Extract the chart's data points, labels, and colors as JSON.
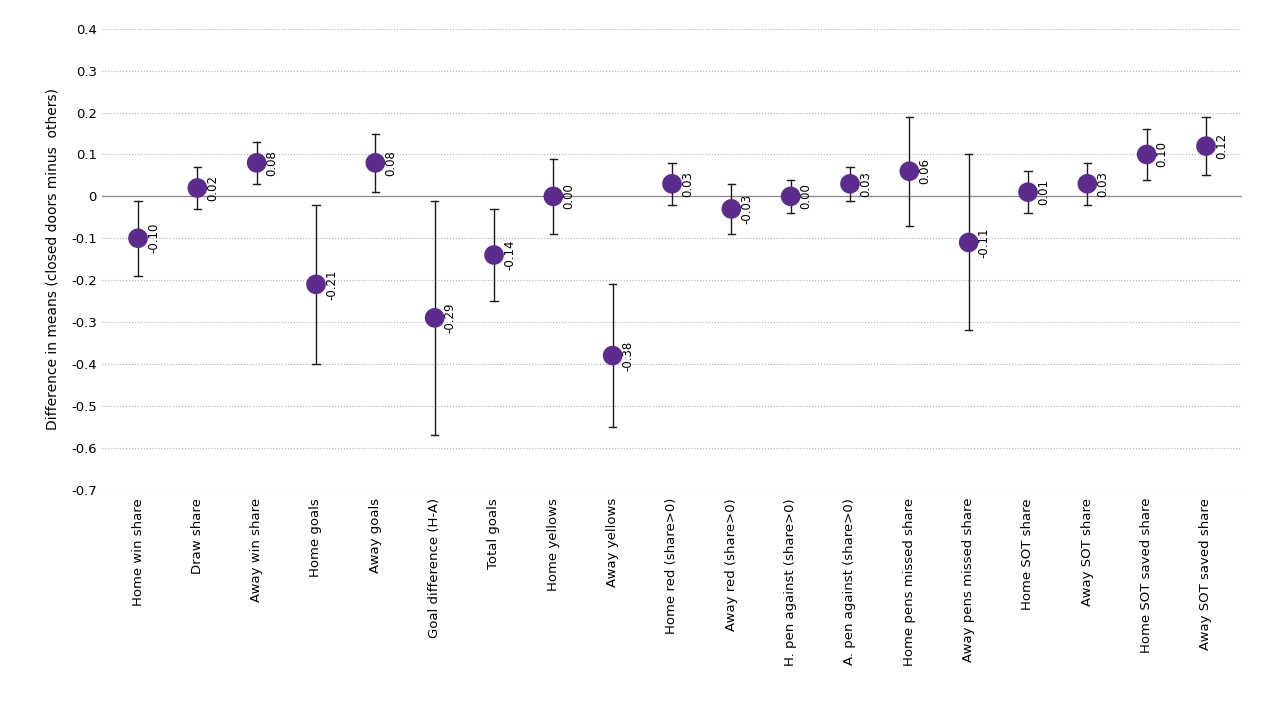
{
  "categories": [
    "Home win share",
    "Draw share",
    "Away win share",
    "Home goals",
    "Away goals",
    "Goal difference (H-A)",
    "Total goals",
    "Home yellows",
    "Away yellows",
    "Home red (share>0)",
    "Away red (share>0)",
    "H. pen against (share>0)",
    "A. pen against (share>0)",
    "Home pens missed share",
    "Away pens missed share",
    "Home SOT share",
    "Away SOT share",
    "Home SOT saved share",
    "Away SOT saved share"
  ],
  "means": [
    -0.1,
    0.02,
    0.08,
    -0.21,
    0.08,
    -0.29,
    -0.14,
    0.0,
    -0.38,
    0.03,
    -0.03,
    0.0,
    0.03,
    0.06,
    -0.11,
    0.01,
    0.03,
    0.1,
    0.12
  ],
  "ci_lower": [
    -0.19,
    -0.03,
    0.03,
    -0.4,
    0.01,
    -0.57,
    -0.25,
    -0.09,
    -0.55,
    -0.02,
    -0.09,
    -0.04,
    -0.01,
    -0.07,
    -0.32,
    -0.04,
    -0.02,
    0.04,
    0.05
  ],
  "ci_upper": [
    -0.01,
    0.07,
    0.13,
    -0.02,
    0.15,
    -0.01,
    -0.03,
    0.09,
    -0.21,
    0.08,
    0.03,
    0.04,
    0.07,
    0.19,
    0.1,
    0.06,
    0.08,
    0.16,
    0.19
  ],
  "labels": [
    "-0.10",
    "0.02",
    "0.08",
    "-0.21",
    "0.08",
    "-0.29",
    "-0.14",
    "0.00",
    "-0.38",
    "0.03",
    "-0.03",
    "0.00",
    "0.03",
    "0.06",
    "-0.11",
    "0.01",
    "0.03",
    "0.10",
    "0.12"
  ],
  "dot_color": "#5b2c8d",
  "line_color": "#1a1a1a",
  "ylabel": "Difference in means (closed doors minus  others)",
  "ylim": [
    -0.7,
    0.4
  ],
  "yticks": [
    -0.7,
    -0.6,
    -0.5,
    -0.4,
    -0.3,
    -0.2,
    -0.1,
    0.0,
    0.1,
    0.2,
    0.3,
    0.4
  ],
  "bg_color": "#ffffff",
  "grid_color": "#b0b0b0"
}
